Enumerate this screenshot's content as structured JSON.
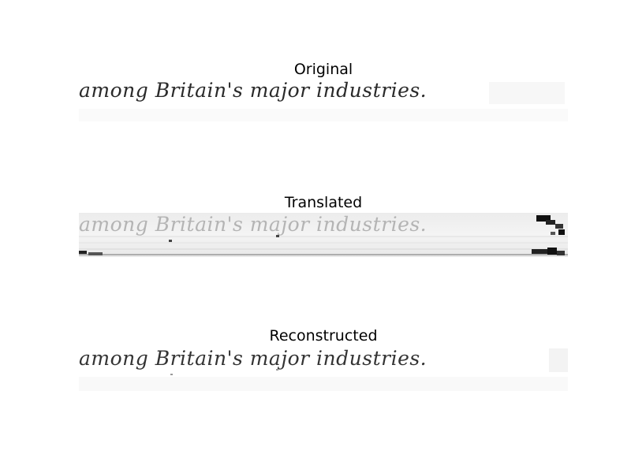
{
  "panels": [
    {
      "title": "Original",
      "text": "among Britain's major industries."
    },
    {
      "title": "Translated",
      "text": "among Britain's major industries."
    },
    {
      "title": "Reconstructed",
      "text": "among Britain's major industries."
    }
  ]
}
